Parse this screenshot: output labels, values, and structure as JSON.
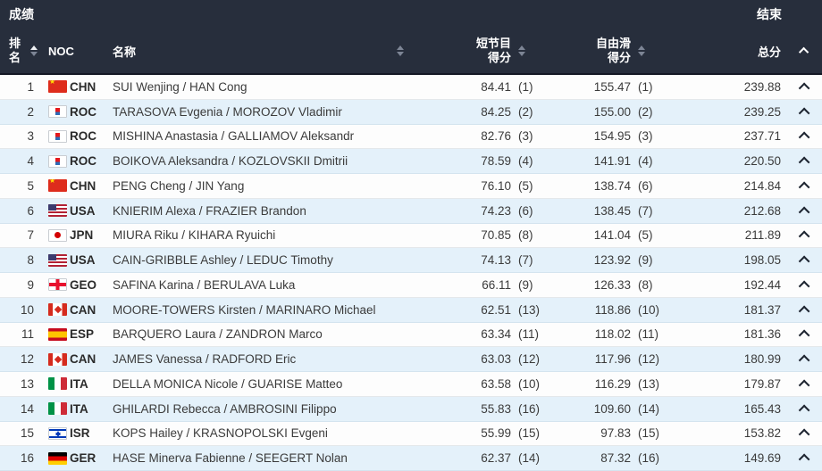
{
  "colors": {
    "header_bg": "#272e3c",
    "header_divider": "#141824",
    "row_bg": "#fdfdfd",
    "row_alt_bg": "#e4f1fa",
    "row_text": "#3b3b3b",
    "sort_inactive": "#7d8595",
    "sort_active": "#ffffff"
  },
  "header": {
    "title": "成绩",
    "status": "结束"
  },
  "columns": {
    "rank": "排名",
    "noc": "NOC",
    "name": "名称",
    "sp_line1": "短节目",
    "sp_line2": "得分",
    "fs_line1": "自由滑",
    "fs_line2": "得分",
    "total": "总分"
  },
  "icons": {
    "rank_sort": "sort-arrows-active-up",
    "name_sort": "sort-arrows",
    "sp_sort": "sort-arrows",
    "fs_sort": "sort-arrows",
    "total_sort": "chevron-up",
    "row_expand": "chevron-up"
  },
  "rows": [
    {
      "rank": "1",
      "flag": "chn",
      "noc": "CHN",
      "name": "SUI Wenjing / HAN Cong",
      "sp": "84.41",
      "sp_rank": "(1)",
      "fs": "155.47",
      "fs_rank": "(1)",
      "total": "239.88"
    },
    {
      "rank": "2",
      "flag": "roc",
      "noc": "ROC",
      "name": "TARASOVA Evgenia / MOROZOV Vladimir",
      "sp": "84.25",
      "sp_rank": "(2)",
      "fs": "155.00",
      "fs_rank": "(2)",
      "total": "239.25"
    },
    {
      "rank": "3",
      "flag": "roc",
      "noc": "ROC",
      "name": "MISHINA Anastasia / GALLIAMOV Aleksandr",
      "sp": "82.76",
      "sp_rank": "(3)",
      "fs": "154.95",
      "fs_rank": "(3)",
      "total": "237.71"
    },
    {
      "rank": "4",
      "flag": "roc",
      "noc": "ROC",
      "name": "BOIKOVA Aleksandra / KOZLOVSKII Dmitrii",
      "sp": "78.59",
      "sp_rank": "(4)",
      "fs": "141.91",
      "fs_rank": "(4)",
      "total": "220.50"
    },
    {
      "rank": "5",
      "flag": "chn",
      "noc": "CHN",
      "name": "PENG Cheng / JIN Yang",
      "sp": "76.10",
      "sp_rank": "(5)",
      "fs": "138.74",
      "fs_rank": "(6)",
      "total": "214.84"
    },
    {
      "rank": "6",
      "flag": "usa",
      "noc": "USA",
      "name": "KNIERIM Alexa / FRAZIER Brandon",
      "sp": "74.23",
      "sp_rank": "(6)",
      "fs": "138.45",
      "fs_rank": "(7)",
      "total": "212.68"
    },
    {
      "rank": "7",
      "flag": "jpn",
      "noc": "JPN",
      "name": "MIURA Riku / KIHARA Ryuichi",
      "sp": "70.85",
      "sp_rank": "(8)",
      "fs": "141.04",
      "fs_rank": "(5)",
      "total": "211.89"
    },
    {
      "rank": "8",
      "flag": "usa",
      "noc": "USA",
      "name": "CAIN-GRIBBLE Ashley / LEDUC Timothy",
      "sp": "74.13",
      "sp_rank": "(7)",
      "fs": "123.92",
      "fs_rank": "(9)",
      "total": "198.05"
    },
    {
      "rank": "9",
      "flag": "geo",
      "noc": "GEO",
      "name": "SAFINA Karina / BERULAVA Luka",
      "sp": "66.11",
      "sp_rank": "(9)",
      "fs": "126.33",
      "fs_rank": "(8)",
      "total": "192.44"
    },
    {
      "rank": "10",
      "flag": "can",
      "noc": "CAN",
      "name": "MOORE-TOWERS Kirsten / MARINARO Michael",
      "sp": "62.51",
      "sp_rank": "(13)",
      "fs": "118.86",
      "fs_rank": "(10)",
      "total": "181.37"
    },
    {
      "rank": "11",
      "flag": "esp",
      "noc": "ESP",
      "name": "BARQUERO Laura / ZANDRON Marco",
      "sp": "63.34",
      "sp_rank": "(11)",
      "fs": "118.02",
      "fs_rank": "(11)",
      "total": "181.36"
    },
    {
      "rank": "12",
      "flag": "can",
      "noc": "CAN",
      "name": "JAMES Vanessa / RADFORD Eric",
      "sp": "63.03",
      "sp_rank": "(12)",
      "fs": "117.96",
      "fs_rank": "(12)",
      "total": "180.99"
    },
    {
      "rank": "13",
      "flag": "ita",
      "noc": "ITA",
      "name": "DELLA MONICA Nicole / GUARISE Matteo",
      "sp": "63.58",
      "sp_rank": "(10)",
      "fs": "116.29",
      "fs_rank": "(13)",
      "total": "179.87"
    },
    {
      "rank": "14",
      "flag": "ita",
      "noc": "ITA",
      "name": "GHILARDI Rebecca / AMBROSINI Filippo",
      "sp": "55.83",
      "sp_rank": "(16)",
      "fs": "109.60",
      "fs_rank": "(14)",
      "total": "165.43"
    },
    {
      "rank": "15",
      "flag": "isr",
      "noc": "ISR",
      "name": "KOPS Hailey / KRASNOPOLSKI Evgeni",
      "sp": "55.99",
      "sp_rank": "(15)",
      "fs": "97.83",
      "fs_rank": "(15)",
      "total": "153.82"
    },
    {
      "rank": "16",
      "flag": "ger",
      "noc": "GER",
      "name": "HASE Minerva Fabienne / SEEGERT Nolan",
      "sp": "62.37",
      "sp_rank": "(14)",
      "fs": "87.32",
      "fs_rank": "(16)",
      "total": "149.69"
    }
  ]
}
